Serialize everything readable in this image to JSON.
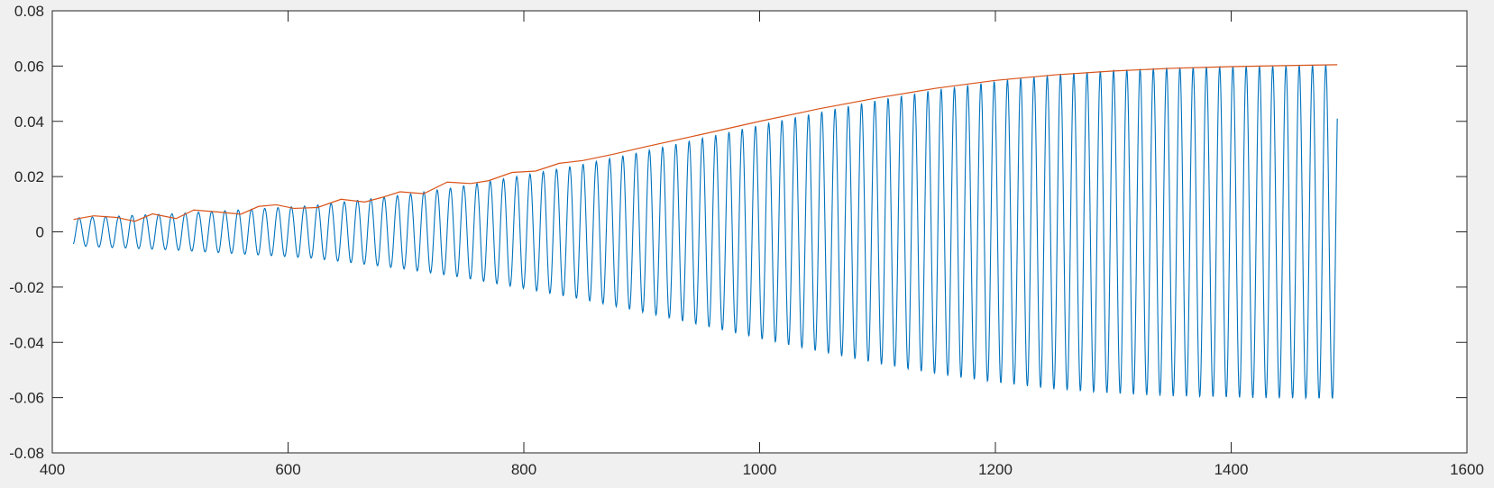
{
  "chart_data": {
    "type": "line",
    "title": "",
    "xlabel": "",
    "ylabel": "",
    "xlim": [
      400,
      1600
    ],
    "ylim": [
      -0.08,
      0.08
    ],
    "grid": false,
    "legend": "none",
    "xticks": [
      400,
      600,
      800,
      1000,
      1200,
      1400,
      1600
    ],
    "xtick_labels": [
      "400",
      "600",
      "800",
      "1000",
      "1200",
      "1400",
      "1600"
    ],
    "yticks": [
      0.08,
      0.06,
      0.04,
      0.02,
      0,
      -0.02,
      -0.04,
      -0.06,
      -0.08
    ],
    "ytick_labels": [
      "0.08",
      "0.06",
      "0.04",
      "0.02",
      "0",
      "-0.02",
      "-0.04",
      "-0.06",
      "-0.08"
    ],
    "series": [
      {
        "color": "#0072bd",
        "description": "oscillating signal",
        "x_start": 418,
        "x_end": 1490,
        "oscillation_period": 11.25,
        "amplitude_envelope_x": [
          418,
          440,
          460,
          480,
          500,
          520,
          540,
          560,
          580,
          600,
          620,
          640,
          660,
          680,
          700,
          720,
          740,
          760,
          780,
          800,
          850,
          900,
          950,
          1000,
          1050,
          1100,
          1150,
          1200,
          1250,
          1300,
          1350,
          1400,
          1450,
          1490
        ],
        "amplitude_envelope_y": [
          0.005,
          0.0055,
          0.0058,
          0.0062,
          0.0065,
          0.007,
          0.0075,
          0.008,
          0.0085,
          0.009,
          0.0095,
          0.0105,
          0.0115,
          0.0125,
          0.0135,
          0.0148,
          0.016,
          0.0175,
          0.019,
          0.0205,
          0.0245,
          0.029,
          0.0338,
          0.0387,
          0.0433,
          0.0477,
          0.0515,
          0.0546,
          0.057,
          0.0586,
          0.0595,
          0.06,
          0.0603,
          0.0605
        ],
        "end_value": 0.041
      },
      {
        "color": "#d95319",
        "description": "upper envelope",
        "x": [
          418,
          435,
          455,
          470,
          485,
          505,
          520,
          540,
          560,
          575,
          590,
          605,
          625,
          645,
          665,
          680,
          695,
          715,
          735,
          755,
          770,
          790,
          810,
          830,
          850,
          875,
          900,
          950,
          1000,
          1050,
          1100,
          1150,
          1200,
          1250,
          1300,
          1350,
          1400,
          1450,
          1490
        ],
        "y": [
          0.0045,
          0.0058,
          0.0052,
          0.0038,
          0.0065,
          0.0048,
          0.0079,
          0.0072,
          0.0064,
          0.0092,
          0.0098,
          0.0085,
          0.0088,
          0.0118,
          0.0108,
          0.0125,
          0.0145,
          0.0138,
          0.018,
          0.0175,
          0.0185,
          0.0215,
          0.022,
          0.0248,
          0.0258,
          0.028,
          0.0305,
          0.0352,
          0.04,
          0.0445,
          0.0485,
          0.052,
          0.0548,
          0.0568,
          0.0582,
          0.0592,
          0.0598,
          0.0602,
          0.0605
        ]
      }
    ]
  }
}
